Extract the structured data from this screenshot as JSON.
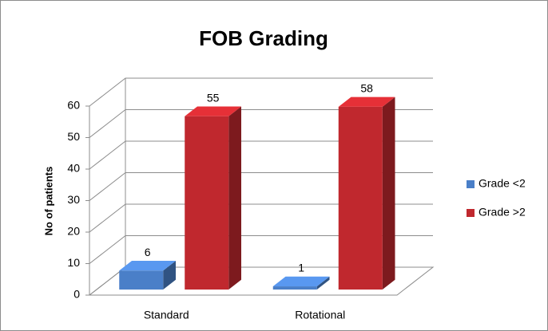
{
  "chart_data": {
    "type": "bar3d",
    "title": "FOB Grading",
    "y_label": "No of patients",
    "categories": [
      "Standard",
      "Rotational"
    ],
    "series": [
      {
        "name": "Grade <2",
        "color": "#4a7fc8",
        "values": [
          6,
          1
        ]
      },
      {
        "name": "Grade >2",
        "color": "#c0282e",
        "values": [
          55,
          58
        ]
      }
    ],
    "ylim": [
      0,
      60
    ],
    "yticks": [
      0,
      10,
      20,
      30,
      40,
      50,
      60
    ],
    "grid": true,
    "legend": "right"
  }
}
